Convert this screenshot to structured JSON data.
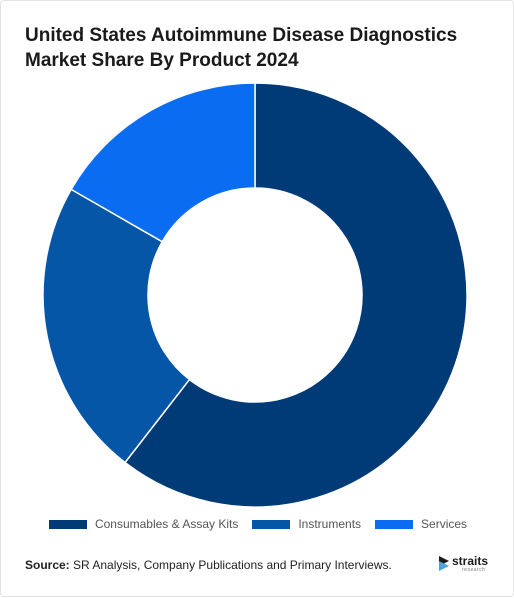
{
  "title_lines": [
    "United States Autoimmune Disease Diagnostics",
    "Market Share By Product 2024"
  ],
  "source": {
    "label": "Source:",
    "text": " SR Analysis, Company Publications and Primary Interviews."
  },
  "logo": {
    "name": "straits",
    "sub": "research"
  },
  "chart_data": {
    "type": "pie",
    "donut": true,
    "categories": [
      "Consumables & Assay Kits",
      "Instruments",
      "Services"
    ],
    "values": [
      60.5,
      22.8,
      16.7
    ],
    "colors": [
      "#003b77",
      "#0656a8",
      "#0a6cf0"
    ],
    "legend_position": "bottom"
  }
}
